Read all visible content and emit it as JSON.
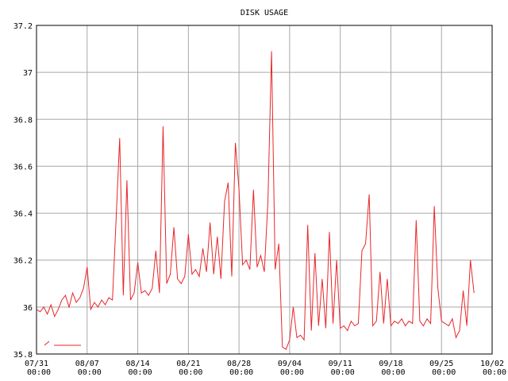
{
  "chart_data": {
    "type": "line",
    "title": "DISK USAGE",
    "x": [
      "07/31 00:00",
      "07/31 12:00",
      "08/01 00:00",
      "08/01 12:00",
      "08/02 00:00",
      "08/02 12:00",
      "08/03 00:00",
      "08/03 12:00",
      "08/04 00:00",
      "08/04 12:00",
      "08/05 00:00",
      "08/05 12:00",
      "08/06 00:00",
      "08/06 12:00",
      "08/07 00:00",
      "08/07 12:00",
      "08/08 00:00",
      "08/08 12:00",
      "08/09 00:00",
      "08/09 12:00",
      "08/10 00:00",
      "08/10 12:00",
      "08/11 00:00",
      "08/11 12:00",
      "08/12 00:00",
      "08/12 12:00",
      "08/13 00:00",
      "08/13 12:00",
      "08/14 00:00",
      "08/14 12:00",
      "08/15 00:00",
      "08/15 12:00",
      "08/16 00:00",
      "08/16 12:00",
      "08/17 00:00",
      "08/17 12:00",
      "08/18 00:00",
      "08/18 12:00",
      "08/19 00:00",
      "08/19 12:00",
      "08/20 00:00",
      "08/20 12:00",
      "08/21 00:00",
      "08/21 12:00",
      "08/22 00:00",
      "08/22 12:00",
      "08/23 00:00",
      "08/23 12:00",
      "08/24 00:00",
      "08/24 12:00",
      "08/25 00:00",
      "08/25 12:00",
      "08/26 00:00",
      "08/26 12:00",
      "08/27 00:00",
      "08/27 12:00",
      "08/28 00:00",
      "08/28 12:00",
      "08/29 00:00",
      "08/29 12:00",
      "08/30 00:00",
      "08/30 12:00",
      "08/31 00:00",
      "08/31 12:00",
      "09/01 00:00",
      "09/01 12:00",
      "09/02 00:00",
      "09/02 12:00",
      "09/03 00:00",
      "09/03 12:00",
      "09/04 00:00",
      "09/04 12:00",
      "09/05 00:00",
      "09/05 12:00",
      "09/06 00:00",
      "09/06 12:00",
      "09/07 00:00",
      "09/07 12:00",
      "09/08 00:00",
      "09/08 12:00",
      "09/09 00:00",
      "09/09 12:00",
      "09/10 00:00",
      "09/10 12:00",
      "09/11 00:00",
      "09/11 12:00",
      "09/12 00:00",
      "09/12 12:00",
      "09/13 00:00",
      "09/13 12:00",
      "09/14 00:00",
      "09/14 12:00",
      "09/15 00:00",
      "09/15 12:00",
      "09/16 00:00",
      "09/16 12:00",
      "09/17 00:00",
      "09/17 12:00",
      "09/18 00:00",
      "09/18 12:00",
      "09/19 00:00",
      "09/19 12:00",
      "09/20 00:00",
      "09/20 12:00",
      "09/21 00:00",
      "09/21 12:00",
      "09/22 00:00",
      "09/22 12:00",
      "09/23 00:00",
      "09/23 12:00",
      "09/24 00:00",
      "09/24 12:00",
      "09/25 00:00",
      "09/25 12:00",
      "09/26 00:00",
      "09/26 12:00",
      "09/27 00:00",
      "09/27 12:00",
      "09/28 00:00",
      "09/28 12:00",
      "09/29 00:00",
      "09/29 12:00"
    ],
    "series": [
      {
        "color": "#e8262a",
        "values": [
          35.99,
          35.98,
          36.0,
          35.97,
          36.01,
          35.96,
          35.99,
          36.03,
          36.05,
          36.0,
          36.06,
          36.02,
          36.04,
          36.08,
          36.17,
          35.99,
          36.02,
          36.0,
          36.03,
          36.01,
          36.04,
          36.03,
          36.37,
          36.72,
          36.05,
          36.54,
          36.03,
          36.06,
          36.19,
          36.06,
          36.07,
          36.05,
          36.08,
          36.24,
          36.06,
          36.77,
          36.1,
          36.14,
          36.34,
          36.12,
          36.1,
          36.13,
          36.31,
          36.14,
          36.16,
          36.13,
          36.25,
          36.15,
          36.36,
          36.14,
          36.3,
          36.12,
          36.45,
          36.53,
          36.13,
          36.7,
          36.5,
          36.18,
          36.2,
          36.16,
          36.5,
          36.17,
          36.22,
          36.15,
          36.45,
          37.09,
          36.16,
          36.27,
          35.83,
          35.82,
          35.86,
          36.0,
          35.87,
          35.88,
          35.86,
          36.35,
          35.9,
          36.23,
          35.92,
          36.12,
          35.91,
          36.32,
          35.93,
          36.2,
          35.91,
          35.92,
          35.9,
          35.94,
          35.92,
          35.93,
          36.24,
          36.27,
          36.48,
          35.92,
          35.94,
          36.15,
          35.93,
          36.12,
          35.92,
          35.94,
          35.93,
          35.95,
          35.92,
          35.94,
          35.93,
          36.37,
          35.94,
          35.92,
          35.95,
          35.93,
          36.43,
          36.08,
          35.94,
          35.93,
          35.92,
          35.95,
          35.87,
          35.9,
          36.07,
          35.92,
          36.2,
          36.06
        ]
      }
    ],
    "xlim": [
      "07/31 00:00",
      "10/02 00:00"
    ],
    "xticks": [
      "07/31 00:00",
      "08/07 00:00",
      "08/14 00:00",
      "08/21 00:00",
      "08/28 00:00",
      "09/04 00:00",
      "09/11 00:00",
      "09/18 00:00",
      "09/25 00:00",
      "10/02 00:00"
    ],
    "ylim": [
      35.8,
      37.2
    ],
    "yticks": [
      35.8,
      36,
      36.2,
      36.4,
      36.6,
      36.8,
      37,
      37.2
    ],
    "grid": true
  }
}
